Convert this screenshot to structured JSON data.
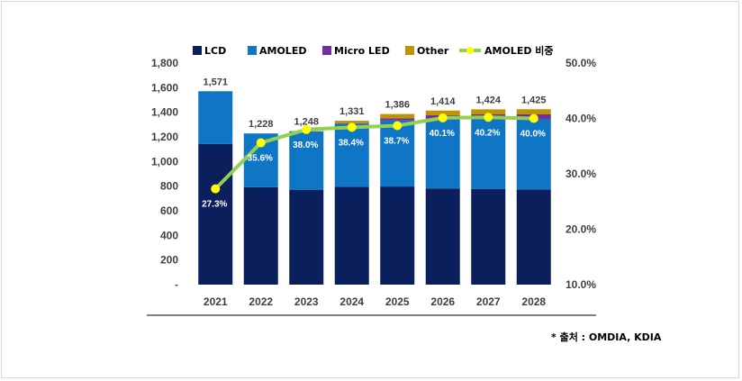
{
  "chart_data": {
    "type": "bar",
    "stacked": true,
    "categories": [
      "2021",
      "2022",
      "2023",
      "2024",
      "2025",
      "2026",
      "2027",
      "2028"
    ],
    "series": [
      {
        "name": "LCD",
        "type": "bar",
        "color": "#0b1f5c",
        "values": [
          1142,
          792,
          771,
          795,
          797,
          781,
          776,
          773
        ]
      },
      {
        "name": "AMOLED",
        "type": "bar",
        "color": "#0f76c6",
        "values": [
          429,
          436,
          474,
          512,
          536,
          567,
          572,
          570
        ]
      },
      {
        "name": "Micro LED",
        "type": "bar",
        "color": "#7030a0",
        "values": [
          0,
          0,
          1,
          5,
          18,
          28,
          35,
          40
        ]
      },
      {
        "name": "Other",
        "type": "bar",
        "color": "#c09400",
        "values": [
          0,
          0,
          2,
          19,
          35,
          38,
          41,
          42
        ]
      },
      {
        "name": "AMOLED 비중",
        "type": "line",
        "axis": "right",
        "color": "#92d050",
        "marker_color": "#ffff00",
        "values": [
          27.3,
          35.6,
          38.0,
          38.4,
          38.7,
          40.1,
          40.2,
          40.0
        ],
        "labels": [
          "27.3%",
          "35.6%",
          "38.0%",
          "38.4%",
          "38.7%",
          "40.1%",
          "40.2%",
          "40.0%"
        ]
      }
    ],
    "totals": [
      "1,571",
      "1,228",
      "1,248",
      "1,331",
      "1,386",
      "1,414",
      "1,424",
      "1,425"
    ],
    "y_left": {
      "min": 0,
      "max": 1800,
      "ticks": [
        "-",
        "200",
        "400",
        "600",
        "800",
        "1,000",
        "1,200",
        "1,400",
        "1,600",
        "1,800"
      ]
    },
    "y_right": {
      "min": 10,
      "max": 50,
      "ticks": [
        "10.0%",
        "20.0%",
        "30.0%",
        "40.0%",
        "50.0%"
      ]
    },
    "legend_position": "top",
    "grid": false
  },
  "source_note": "* 출처 : OMDIA, KDIA"
}
